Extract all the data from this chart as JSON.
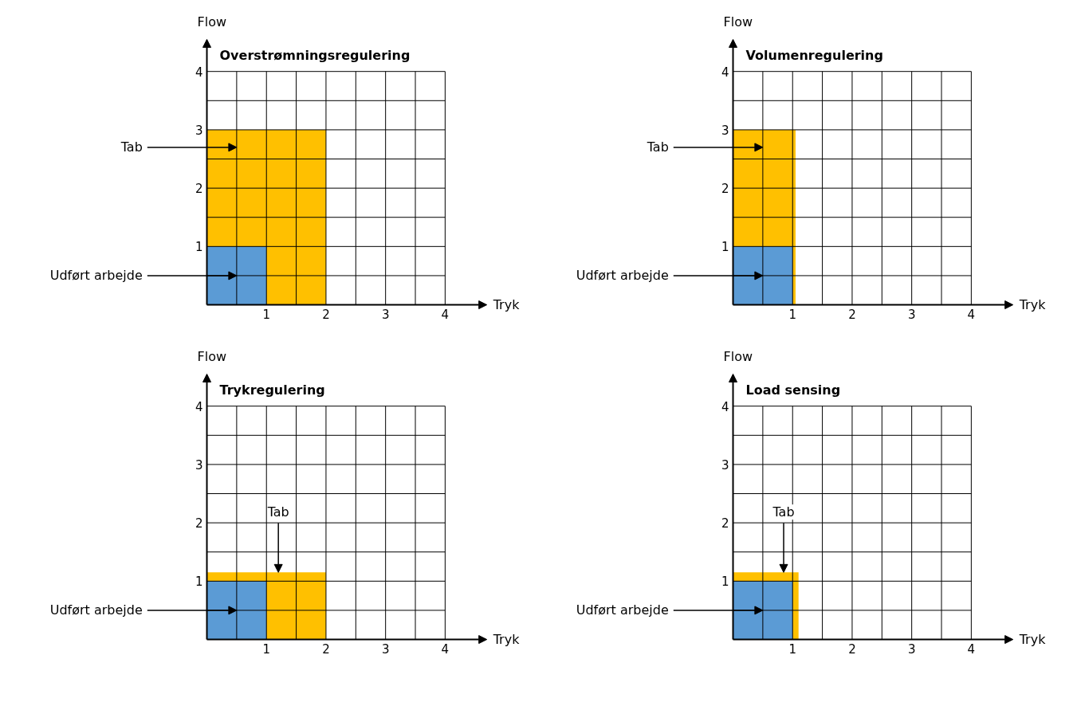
{
  "chart_data": [
    {
      "type": "area",
      "title": "Overstrømningsregulering",
      "xlabel": "Tryk",
      "ylabel": "Flow",
      "xlim": [
        0,
        4.7
      ],
      "ylim": [
        0,
        4.55
      ],
      "xticks": [
        {
          "value": 0.5,
          "label": null
        },
        1,
        {
          "value": 1.5,
          "label": null
        },
        2,
        {
          "value": 2.5,
          "label": null
        },
        3,
        {
          "value": 3.5,
          "label": null
        },
        4
      ],
      "yticks": [
        {
          "value": 0.5,
          "label": null
        },
        1,
        {
          "value": 1.5,
          "label": null
        },
        2,
        {
          "value": 2.5,
          "label": null
        },
        3,
        {
          "value": 3.5,
          "label": null
        },
        4
      ],
      "grid": true,
      "series": [
        {
          "color": "#ffc000",
          "x": [
            0,
            2
          ],
          "values": [
            3,
            3
          ]
        },
        {
          "color": "#5b9bd5",
          "x": [
            0,
            1
          ],
          "values": [
            1,
            1
          ]
        }
      ],
      "annotations": [
        "Tab",
        "Udført arbejde"
      ]
    },
    {
      "type": "area",
      "title": "Volumenregulering",
      "xlabel": "Tryk",
      "ylabel": "Flow",
      "xlim": [
        0,
        4.7
      ],
      "ylim": [
        0,
        4.55
      ],
      "xticks": [
        {
          "value": 0.5,
          "label": null
        },
        1,
        {
          "value": 1.5,
          "label": null
        },
        2,
        {
          "value": 2.5,
          "label": null
        },
        3,
        {
          "value": 3.5,
          "label": null
        },
        4
      ],
      "yticks": [
        {
          "value": 0.5,
          "label": null
        },
        1,
        {
          "value": 1.5,
          "label": null
        },
        2,
        {
          "value": 2.5,
          "label": null
        },
        3,
        {
          "value": 3.5,
          "label": null
        },
        4
      ],
      "grid": true,
      "series": [
        {
          "color": "#ffc000",
          "x": [
            0,
            1.05
          ],
          "values": [
            3,
            3
          ]
        },
        {
          "color": "#5b9bd5",
          "x": [
            0,
            1
          ],
          "values": [
            1,
            1
          ]
        }
      ],
      "annotations": [
        "Tab",
        "Udført arbejde"
      ]
    },
    {
      "type": "area",
      "title": "Trykregulering",
      "xlabel": "Tryk",
      "ylabel": "Flow",
      "xlim": [
        0,
        4.7
      ],
      "ylim": [
        0,
        4.55
      ],
      "xticks": [
        {
          "value": 0.5,
          "label": null
        },
        1,
        {
          "value": 1.5,
          "label": null
        },
        2,
        {
          "value": 2.5,
          "label": null
        },
        3,
        {
          "value": 3.5,
          "label": null
        },
        4
      ],
      "yticks": [
        {
          "value": 0.5,
          "label": null
        },
        1,
        {
          "value": 1.5,
          "label": null
        },
        2,
        {
          "value": 2.5,
          "label": null
        },
        3,
        {
          "value": 3.5,
          "label": null
        },
        4
      ],
      "grid": true,
      "series": [
        {
          "color": "#ffc000",
          "x": [
            0,
            2
          ],
          "values": [
            1.15,
            1.15
          ]
        },
        {
          "color": "#5b9bd5",
          "x": [
            0,
            1
          ],
          "values": [
            1,
            1
          ]
        }
      ],
      "annotations": [
        {
          "text": "Tab",
          "x": 1.2,
          "y": 1.15
        },
        "Udført arbejde"
      ]
    },
    {
      "type": "area",
      "title": "Load sensing",
      "xlabel": "Tryk",
      "ylabel": "Flow",
      "xlim": [
        0,
        4.7
      ],
      "ylim": [
        0,
        4.55
      ],
      "xticks": [
        {
          "value": 0.5,
          "label": null
        },
        1,
        {
          "value": 1.5,
          "label": null
        },
        2,
        {
          "value": 2.5,
          "label": null
        },
        3,
        {
          "value": 3.5,
          "label": null
        },
        4
      ],
      "yticks": [
        {
          "value": 0.5,
          "label": null
        },
        1,
        {
          "value": 1.5,
          "label": null
        },
        2,
        {
          "value": 2.5,
          "label": null
        },
        3,
        {
          "value": 3.5,
          "label": null
        },
        4
      ],
      "grid": true,
      "series": [
        {
          "color": "#ffc000",
          "x": [
            0,
            1.1
          ],
          "values": [
            1.15,
            1.15
          ]
        },
        {
          "color": "#5b9bd5",
          "x": [
            0,
            1
          ],
          "values": [
            1,
            1
          ]
        }
      ],
      "annotations": [
        {
          "text": "Tab",
          "x": 0.85,
          "y": 1.15
        },
        "Udført arbejde"
      ]
    }
  ]
}
